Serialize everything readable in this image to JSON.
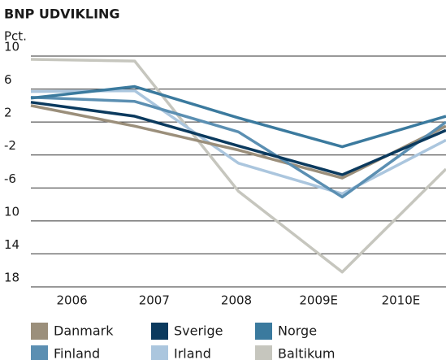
{
  "chart_data": {
    "type": "line",
    "title": "BNP UDVIKLING",
    "y_label": "Pct.",
    "categories": [
      "2006",
      "2007",
      "2008",
      "2009E",
      "2010E"
    ],
    "series": [
      {
        "name": "Danmark",
        "color": "#9b8f7b",
        "values": [
          4.0,
          1.5,
          -1.4,
          -4.8,
          1.5
        ]
      },
      {
        "name": "Sverige",
        "color": "#0b3a5e",
        "values": [
          4.4,
          2.7,
          -0.9,
          -4.4,
          1.0
        ]
      },
      {
        "name": "Norge",
        "color": "#3b7a9e",
        "values": [
          4.9,
          6.3,
          2.5,
          -1.0,
          2.7
        ]
      },
      {
        "name": "Finland",
        "color": "#5b8fb2",
        "values": [
          5.0,
          4.5,
          0.8,
          -7.1,
          2.0
        ]
      },
      {
        "name": "Irland",
        "color": "#abc6de",
        "values": [
          5.7,
          5.8,
          -3.0,
          -6.7,
          -0.2
        ]
      },
      {
        "name": "Baltikum",
        "color": "#c6c6be",
        "values": [
          9.6,
          9.4,
          -6.4,
          -16.2,
          -3.7
        ]
      }
    ],
    "ylim": [
      -18,
      10
    ],
    "yticks": [
      10,
      6,
      2,
      -2,
      -6,
      {
        "value": -10,
        "label": "10"
      },
      {
        "value": -14,
        "label": "14"
      },
      {
        "value": -18,
        "label": "18"
      }
    ],
    "grid": true
  }
}
